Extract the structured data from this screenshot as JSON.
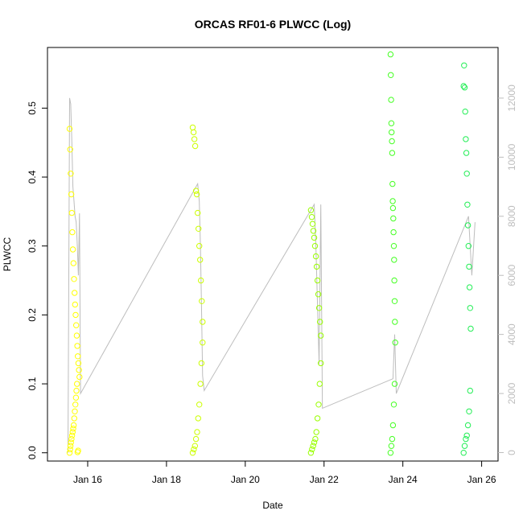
{
  "chart_data": {
    "type": "scatter",
    "title": "ORCAS RF01-6 PLWCC (Log)",
    "xlabel": "Date",
    "ylabel": "PLWCC",
    "xlim": [
      "2016-01-14T23:30",
      "2016-01-26T10:00"
    ],
    "ylim": [
      -0.012,
      0.588
    ],
    "y2lim": [
      -286,
      13714
    ],
    "x_ticks": [
      {
        "value": "2016-01-16T00:00",
        "label": "Jan 16"
      },
      {
        "value": "2016-01-18T00:00",
        "label": "Jan 18"
      },
      {
        "value": "2016-01-20T00:00",
        "label": "Jan 20"
      },
      {
        "value": "2016-01-22T00:00",
        "label": "Jan 22"
      },
      {
        "value": "2016-01-24T00:00",
        "label": "Jan 24"
      },
      {
        "value": "2016-01-26T00:00",
        "label": "Jan 26"
      }
    ],
    "y_ticks": [
      {
        "value": 0.0,
        "label": "0.0"
      },
      {
        "value": 0.1,
        "label": "0.1"
      },
      {
        "value": 0.2,
        "label": "0.2"
      },
      {
        "value": 0.3,
        "label": "0.3"
      },
      {
        "value": 0.4,
        "label": "0.4"
      },
      {
        "value": 0.5,
        "label": "0.5"
      }
    ],
    "y2_ticks": [
      {
        "value": 0,
        "label": "0"
      },
      {
        "value": 2000,
        "label": "2000"
      },
      {
        "value": 4000,
        "label": "4000"
      },
      {
        "value": 6000,
        "label": "6000"
      },
      {
        "value": 8000,
        "label": "8000"
      },
      {
        "value": 10000,
        "label": "10000"
      },
      {
        "value": 12000,
        "label": "12000"
      }
    ],
    "colors": {
      "rf01": "#ffff00",
      "rf02": "#ccff00",
      "rf03": "#99ff00",
      "rf04": "#44ff22",
      "rf05": "#22ee55",
      "altitude_line": "#bdbdbd"
    },
    "series": [
      {
        "id": "rf01",
        "color": "#ffff00",
        "x": [
          "2016-01-15T13:00",
          "2016-01-15T13:20",
          "2016-01-15T13:40",
          "2016-01-15T14:00",
          "2016-01-15T14:20",
          "2016-01-15T14:40",
          "2016-01-15T15:00",
          "2016-01-15T15:20",
          "2016-01-15T15:40",
          "2016-01-15T16:00",
          "2016-01-15T16:20",
          "2016-01-15T16:40",
          "2016-01-15T17:00",
          "2016-01-15T17:20",
          "2016-01-15T17:40",
          "2016-01-15T18:00",
          "2016-01-15T18:20",
          "2016-01-15T18:40",
          "2016-01-15T19:00",
          "2016-01-15T13:00",
          "2016-01-15T13:20",
          "2016-01-15T13:30",
          "2016-01-15T13:50",
          "2016-01-15T14:10",
          "2016-01-15T14:30",
          "2016-01-15T14:50",
          "2016-01-15T15:10",
          "2016-01-15T15:30",
          "2016-01-15T15:50",
          "2016-01-15T16:10",
          "2016-01-15T16:30",
          "2016-01-15T16:50",
          "2016-01-15T17:10",
          "2016-01-15T17:30",
          "2016-01-15T17:50",
          "2016-01-15T18:10"
        ],
        "y": [
          0.47,
          0.44,
          0.405,
          0.375,
          0.348,
          0.32,
          0.295,
          0.275,
          0.252,
          0.232,
          0.215,
          0.2,
          0.185,
          0.17,
          0.155,
          0.14,
          0.13,
          0.12,
          0.11,
          0.0,
          0.005,
          0.01,
          0.015,
          0.02,
          0.025,
          0.03,
          0.035,
          0.04,
          0.05,
          0.06,
          0.07,
          0.08,
          0.09,
          0.1,
          0.001,
          0.003
        ]
      },
      {
        "id": "rf02",
        "color": "#ccff00",
        "x": [
          "2016-01-18T16:00",
          "2016-01-18T16:30",
          "2016-01-18T17:00",
          "2016-01-18T17:30",
          "2016-01-18T18:00",
          "2016-01-18T18:30",
          "2016-01-18T19:00",
          "2016-01-18T19:30",
          "2016-01-18T20:00",
          "2016-01-18T20:30",
          "2016-01-18T21:00",
          "2016-01-18T21:30",
          "2016-01-18T22:00",
          "2016-01-18T16:00",
          "2016-01-18T16:40",
          "2016-01-18T17:20",
          "2016-01-18T18:00",
          "2016-01-18T18:40",
          "2016-01-18T19:20",
          "2016-01-18T20:00",
          "2016-01-18T20:40",
          "2016-01-18T21:20",
          "2016-01-18T22:00"
        ],
        "y": [
          0.472,
          0.465,
          0.455,
          0.445,
          0.38,
          0.375,
          0.348,
          0.325,
          0.3,
          0.28,
          0.25,
          0.22,
          0.19,
          0.0,
          0.005,
          0.01,
          0.02,
          0.03,
          0.05,
          0.07,
          0.1,
          0.13,
          0.16
        ]
      },
      {
        "id": "rf03",
        "color": "#99ff00",
        "x": [
          "2016-01-21T16:00",
          "2016-01-21T16:30",
          "2016-01-21T17:00",
          "2016-01-21T17:30",
          "2016-01-21T18:00",
          "2016-01-21T18:30",
          "2016-01-21T19:00",
          "2016-01-21T19:30",
          "2016-01-21T20:00",
          "2016-01-21T20:30",
          "2016-01-21T21:00",
          "2016-01-21T21:30",
          "2016-01-21T22:00",
          "2016-01-21T16:00",
          "2016-01-21T16:40",
          "2016-01-21T17:20",
          "2016-01-21T18:00",
          "2016-01-21T18:40",
          "2016-01-21T19:20",
          "2016-01-21T20:00",
          "2016-01-21T20:40",
          "2016-01-21T21:20",
          "2016-01-21T22:00"
        ],
        "y": [
          0.352,
          0.342,
          0.332,
          0.322,
          0.312,
          0.3,
          0.285,
          0.27,
          0.25,
          0.23,
          0.21,
          0.19,
          0.17,
          0.0,
          0.005,
          0.01,
          0.015,
          0.02,
          0.03,
          0.05,
          0.07,
          0.1,
          0.13
        ]
      },
      {
        "id": "rf04",
        "color": "#44ff22",
        "x": [
          "2016-01-23T16:30",
          "2016-01-23T16:40",
          "2016-01-23T16:50",
          "2016-01-23T17:00",
          "2016-01-23T17:10",
          "2016-01-23T17:20",
          "2016-01-23T17:30",
          "2016-01-23T17:40",
          "2016-01-23T17:50",
          "2016-01-23T18:00",
          "2016-01-23T18:10",
          "2016-01-23T18:20",
          "2016-01-23T18:30",
          "2016-01-23T18:40",
          "2016-01-23T18:50",
          "2016-01-23T19:00",
          "2016-01-23T19:10",
          "2016-01-23T19:20",
          "2016-01-23T16:30",
          "2016-01-23T17:00",
          "2016-01-23T17:30",
          "2016-01-23T18:00",
          "2016-01-23T18:30",
          "2016-01-23T19:00"
        ],
        "y": [
          0.578,
          0.548,
          0.512,
          0.478,
          0.465,
          0.452,
          0.435,
          0.39,
          0.365,
          0.355,
          0.34,
          0.32,
          0.3,
          0.28,
          0.25,
          0.22,
          0.19,
          0.16,
          0.0,
          0.01,
          0.02,
          0.04,
          0.07,
          0.1
        ]
      },
      {
        "id": "rf05",
        "color": "#22ee55",
        "x": [
          "2016-01-25T13:00",
          "2016-01-25T13:20",
          "2016-01-25T13:40",
          "2016-01-25T14:00",
          "2016-01-25T14:20",
          "2016-01-25T14:40",
          "2016-01-25T15:00",
          "2016-01-25T15:20",
          "2016-01-25T15:40",
          "2016-01-25T16:00",
          "2016-01-25T16:20",
          "2016-01-25T16:40",
          "2016-01-25T17:00",
          "2016-01-25T17:20",
          "2016-01-25T13:00",
          "2016-01-25T13:40",
          "2016-01-25T14:20",
          "2016-01-25T15:00",
          "2016-01-25T15:40",
          "2016-01-25T16:20",
          "2016-01-25T17:00"
        ],
        "y": [
          0.532,
          0.562,
          0.53,
          0.495,
          0.455,
          0.435,
          0.405,
          0.36,
          0.33,
          0.3,
          0.27,
          0.24,
          0.21,
          0.18,
          0.0,
          0.01,
          0.02,
          0.025,
          0.04,
          0.06,
          0.09
        ]
      }
    ],
    "altitude_line": {
      "color": "#bdbdbd",
      "x": [
        "2016-01-15T12:00",
        "2016-01-15T13:00",
        "2016-01-15T13:40",
        "2016-01-15T14:20",
        "2016-01-15T15:00",
        "2016-01-15T15:40",
        "2016-01-15T16:20",
        "2016-01-15T17:00",
        "2016-01-15T17:40",
        "2016-01-15T18:20",
        "2016-01-15T19:00",
        "2016-01-15T19:40",
        "2016-01-18T19:00",
        "2016-01-18T20:00",
        "2016-01-18T20:40",
        "2016-01-18T21:20",
        "2016-01-18T22:00",
        "2016-01-18T23:00",
        "2016-01-21T18:00",
        "2016-01-21T19:00",
        "2016-01-21T20:00",
        "2016-01-21T21:00",
        "2016-01-21T22:00",
        "2016-01-21T23:00",
        "2016-01-23T18:00",
        "2016-01-23T19:00",
        "2016-01-23T20:00",
        "2016-01-25T16:00",
        "2016-01-25T18:00",
        "2016-01-25T20:00"
      ],
      "y": [
        0,
        12000,
        11800,
        10500,
        9000,
        8500,
        8000,
        7800,
        7000,
        6000,
        8100,
        2000,
        9100,
        8500,
        7000,
        5000,
        2600,
        2100,
        8400,
        7000,
        5000,
        3000,
        8400,
        1500,
        2500,
        4000,
        2000,
        8000,
        6000,
        7800
      ]
    }
  }
}
